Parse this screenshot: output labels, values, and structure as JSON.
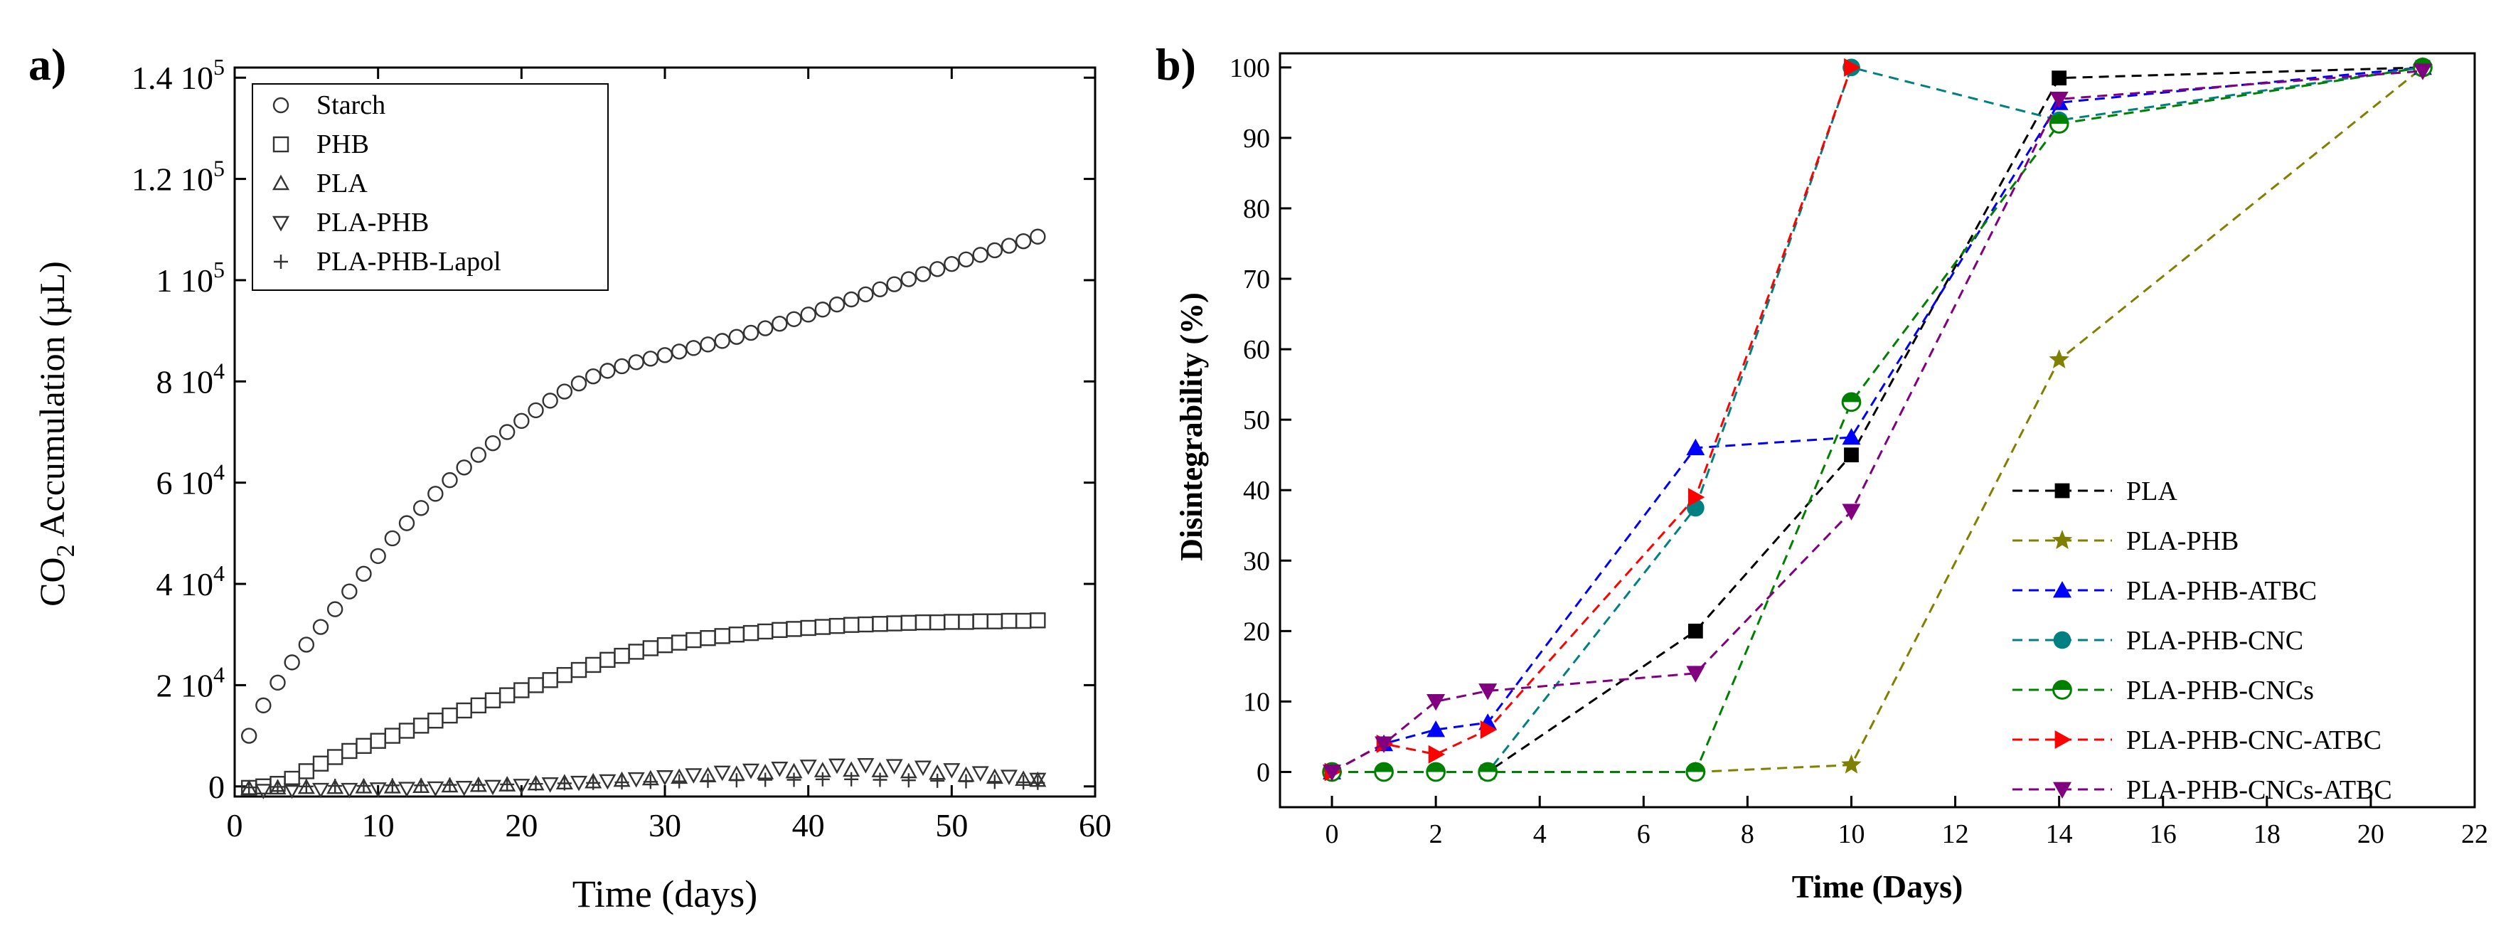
{
  "chart_data": [
    {
      "panel_label": "a)",
      "type": "scatter",
      "xlabel": "Time (days)",
      "ylabel_main": "CO",
      "ylabel_sub": "2",
      "ylabel_rest": " Accumulation (µL)",
      "xlim": [
        0,
        60
      ],
      "ylim": [
        -2000,
        142000
      ],
      "x_ticks": [
        "0",
        "10",
        "20",
        "30",
        "40",
        "50",
        "60"
      ],
      "y_ticks": [
        {
          "value": 0,
          "mantissa": "0",
          "exp": ""
        },
        {
          "value": 20000,
          "mantissa": "2 10",
          "exp": "4"
        },
        {
          "value": 40000,
          "mantissa": "4 10",
          "exp": "4"
        },
        {
          "value": 60000,
          "mantissa": "6 10",
          "exp": "4"
        },
        {
          "value": 80000,
          "mantissa": "8 10",
          "exp": "4"
        },
        {
          "value": 100000,
          "mantissa": "1 10",
          "exp": "5"
        },
        {
          "value": 120000,
          "mantissa": "1.2 10",
          "exp": "5"
        },
        {
          "value": 140000,
          "mantissa": "1.4 10",
          "exp": "5"
        }
      ],
      "legend_position": "top-left",
      "series": [
        {
          "name": "Starch",
          "marker": "circle",
          "points": [
            [
              1,
              10000
            ],
            [
              2,
              16000
            ],
            [
              3,
              20500
            ],
            [
              4,
              24500
            ],
            [
              5,
              28000
            ],
            [
              6,
              31500
            ],
            [
              7,
              35000
            ],
            [
              8,
              38500
            ],
            [
              9,
              42000
            ],
            [
              10,
              45500
            ],
            [
              11,
              49000
            ],
            [
              12,
              52000
            ],
            [
              13,
              55000
            ],
            [
              14,
              57800
            ],
            [
              15,
              60500
            ],
            [
              16,
              63000
            ],
            [
              17,
              65500
            ],
            [
              18,
              67800
            ],
            [
              19,
              70000
            ],
            [
              20,
              72200
            ],
            [
              21,
              74300
            ],
            [
              22,
              76200
            ],
            [
              23,
              78000
            ],
            [
              24,
              79600
            ],
            [
              25,
              81000
            ],
            [
              26,
              82100
            ],
            [
              27,
              83000
            ],
            [
              28,
              83800
            ],
            [
              29,
              84500
            ],
            [
              30,
              85200
            ],
            [
              31,
              85900
            ],
            [
              32,
              86600
            ],
            [
              33,
              87300
            ],
            [
              34,
              88000
            ],
            [
              35,
              88800
            ],
            [
              36,
              89600
            ],
            [
              37,
              90500
            ],
            [
              38,
              91400
            ],
            [
              39,
              92300
            ],
            [
              40,
              93200
            ],
            [
              41,
              94200
            ],
            [
              42,
              95200
            ],
            [
              43,
              96200
            ],
            [
              44,
              97200
            ],
            [
              45,
              98200
            ],
            [
              46,
              99200
            ],
            [
              47,
              100200
            ],
            [
              48,
              101200
            ],
            [
              49,
              102200
            ],
            [
              50,
              103200
            ],
            [
              51,
              104100
            ],
            [
              52,
              105000
            ],
            [
              53,
              105900
            ],
            [
              54,
              106800
            ],
            [
              55,
              107700
            ],
            [
              56,
              108600
            ]
          ]
        },
        {
          "name": "PHB",
          "marker": "square",
          "points": [
            [
              1,
              -300
            ],
            [
              2,
              0
            ],
            [
              3,
              500
            ],
            [
              4,
              1500
            ],
            [
              5,
              3000
            ],
            [
              6,
              4500
            ],
            [
              7,
              5800
            ],
            [
              8,
              7000
            ],
            [
              9,
              8000
            ],
            [
              10,
              9000
            ],
            [
              11,
              10000
            ],
            [
              12,
              11000
            ],
            [
              13,
              12000
            ],
            [
              14,
              13000
            ],
            [
              15,
              14000
            ],
            [
              16,
              15000
            ],
            [
              17,
              16000
            ],
            [
              18,
              17000
            ],
            [
              19,
              18000
            ],
            [
              20,
              19000
            ],
            [
              21,
              20000
            ],
            [
              22,
              21000
            ],
            [
              23,
              22000
            ],
            [
              24,
              23000
            ],
            [
              25,
              24000
            ],
            [
              26,
              25000
            ],
            [
              27,
              25800
            ],
            [
              28,
              26600
            ],
            [
              29,
              27300
            ],
            [
              30,
              27900
            ],
            [
              31,
              28400
            ],
            [
              32,
              28900
            ],
            [
              33,
              29300
            ],
            [
              34,
              29700
            ],
            [
              35,
              30000
            ],
            [
              36,
              30300
            ],
            [
              37,
              30600
            ],
            [
              38,
              30900
            ],
            [
              39,
              31100
            ],
            [
              40,
              31300
            ],
            [
              41,
              31500
            ],
            [
              42,
              31700
            ],
            [
              43,
              31900
            ],
            [
              44,
              32000
            ],
            [
              45,
              32100
            ],
            [
              46,
              32200
            ],
            [
              47,
              32300
            ],
            [
              48,
              32400
            ],
            [
              49,
              32400
            ],
            [
              50,
              32500
            ],
            [
              51,
              32500
            ],
            [
              52,
              32600
            ],
            [
              53,
              32600
            ],
            [
              54,
              32700
            ],
            [
              55,
              32700
            ],
            [
              56,
              32800
            ]
          ]
        },
        {
          "name": "PLA",
          "marker": "triangle-up",
          "points": [
            [
              1,
              -400
            ],
            [
              3,
              -300
            ],
            [
              5,
              -200
            ],
            [
              7,
              -200
            ],
            [
              9,
              -100
            ],
            [
              11,
              -100
            ],
            [
              13,
              0
            ],
            [
              15,
              100
            ],
            [
              17,
              200
            ],
            [
              19,
              300
            ],
            [
              21,
              500
            ],
            [
              23,
              700
            ],
            [
              25,
              900
            ],
            [
              27,
              1200
            ],
            [
              29,
              1500
            ],
            [
              31,
              1800
            ],
            [
              33,
              2100
            ],
            [
              35,
              2400
            ],
            [
              37,
              2700
            ],
            [
              39,
              2900
            ],
            [
              41,
              3100
            ],
            [
              43,
              3200
            ],
            [
              45,
              3100
            ],
            [
              47,
              2900
            ],
            [
              49,
              2600
            ],
            [
              51,
              2200
            ],
            [
              53,
              1800
            ],
            [
              55,
              1400
            ],
            [
              56,
              1200
            ]
          ]
        },
        {
          "name": "PLA-PHB",
          "marker": "triangle-down",
          "points": [
            [
              2,
              -800
            ],
            [
              4,
              -700
            ],
            [
              6,
              -600
            ],
            [
              8,
              -600
            ],
            [
              10,
              -500
            ],
            [
              12,
              -400
            ],
            [
              14,
              -300
            ],
            [
              16,
              -200
            ],
            [
              18,
              0
            ],
            [
              20,
              200
            ],
            [
              22,
              500
            ],
            [
              24,
              800
            ],
            [
              26,
              1100
            ],
            [
              28,
              1500
            ],
            [
              30,
              1900
            ],
            [
              32,
              2300
            ],
            [
              34,
              2800
            ],
            [
              36,
              3200
            ],
            [
              38,
              3600
            ],
            [
              40,
              4000
            ],
            [
              42,
              4200
            ],
            [
              44,
              4300
            ],
            [
              46,
              4100
            ],
            [
              48,
              3800
            ],
            [
              50,
              3300
            ],
            [
              52,
              2700
            ],
            [
              54,
              2000
            ],
            [
              56,
              1400
            ]
          ]
        },
        {
          "name": "PLA-PHB-Lapol",
          "marker": "plus",
          "points": [
            [
              1,
              -200
            ],
            [
              3,
              -100
            ],
            [
              5,
              0
            ],
            [
              7,
              100
            ],
            [
              9,
              100
            ],
            [
              11,
              200
            ],
            [
              13,
              200
            ],
            [
              15,
              300
            ],
            [
              17,
              300
            ],
            [
              19,
              400
            ],
            [
              21,
              500
            ],
            [
              23,
              600
            ],
            [
              25,
              700
            ],
            [
              27,
              800
            ],
            [
              29,
              900
            ],
            [
              31,
              1000
            ],
            [
              33,
              1100
            ],
            [
              35,
              1200
            ],
            [
              37,
              1300
            ],
            [
              39,
              1300
            ],
            [
              41,
              1400
            ],
            [
              43,
              1400
            ],
            [
              45,
              1300
            ],
            [
              47,
              1200
            ],
            [
              49,
              1100
            ],
            [
              51,
              1000
            ],
            [
              53,
              900
            ],
            [
              55,
              800
            ],
            [
              56,
              700
            ]
          ]
        }
      ]
    },
    {
      "panel_label": "b)",
      "type": "line",
      "xlabel": "Time (Days)",
      "ylabel": "Disintegrability (%)",
      "xlim": [
        -1,
        22
      ],
      "ylim": [
        -5,
        102
      ],
      "x_ticks": [
        0,
        2,
        4,
        6,
        8,
        10,
        12,
        14,
        16,
        18,
        20,
        22
      ],
      "y_ticks": [
        0,
        10,
        20,
        30,
        40,
        50,
        60,
        70,
        80,
        90,
        100
      ],
      "legend_position": "bottom-right",
      "series": [
        {
          "name": "PLA",
          "color": "#000000",
          "marker": "square-filled",
          "x": [
            0,
            3,
            7,
            10,
            14,
            21
          ],
          "y": [
            0,
            0,
            20,
            45,
            98.5,
            100
          ]
        },
        {
          "name": "PLA-PHB",
          "color": "#808000",
          "marker": "star",
          "x": [
            7,
            10,
            14,
            21
          ],
          "y": [
            0,
            1,
            58.5,
            100
          ]
        },
        {
          "name": "PLA-PHB-ATBC",
          "color": "#0000ff",
          "marker": "triangle-up-filled",
          "x": [
            0,
            1,
            2,
            3,
            7,
            10,
            14,
            21
          ],
          "y": [
            0,
            4,
            6,
            7,
            46,
            47.5,
            95,
            100
          ]
        },
        {
          "name": "PLA-PHB-CNC",
          "color": "#008080",
          "marker": "circle-filled",
          "x": [
            0,
            1,
            2,
            3,
            7,
            10,
            14,
            21
          ],
          "y": [
            0,
            0,
            0,
            0,
            37.5,
            100,
            92.5,
            100
          ]
        },
        {
          "name": "PLA-PHB-CNCs",
          "color": "#008000",
          "marker": "circle-half",
          "x": [
            0,
            1,
            2,
            3,
            7,
            10,
            14,
            21
          ],
          "y": [
            0,
            0,
            0,
            0,
            0,
            52.5,
            92,
            100
          ]
        },
        {
          "name": "PLA-PHB-CNC-ATBC",
          "color": "#ff0000",
          "marker": "triangle-right-filled",
          "x": [
            0,
            1,
            2,
            3,
            7,
            10
          ],
          "y": [
            0,
            4,
            2.5,
            6,
            39,
            100
          ]
        },
        {
          "name": "PLA-PHB-CNCs-ATBC",
          "color": "#800080",
          "marker": "triangle-down-filled",
          "x": [
            0,
            1,
            2,
            3,
            7,
            10,
            14,
            21
          ],
          "y": [
            0,
            4,
            10,
            11.5,
            14,
            37,
            95.5,
            99.5
          ]
        }
      ]
    }
  ]
}
